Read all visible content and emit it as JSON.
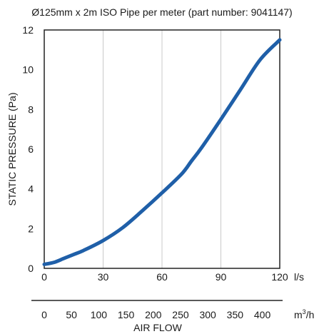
{
  "chart_data": {
    "type": "line",
    "title": "Ø125mm x 2m ISO Pipe per meter (part number: 9041147)",
    "ylabel": "STATIC PRESSURE (Pa)",
    "xlabel": "AIR FLOW",
    "x_unit_primary": "l/s",
    "x_unit_secondary_base": "m",
    "x_unit_secondary_sup": "3",
    "x_unit_secondary_tail": "/h",
    "xlim": [
      0,
      120
    ],
    "ylim": [
      0,
      12
    ],
    "x_ticks": [
      0,
      30,
      60,
      90,
      120
    ],
    "y_ticks": [
      0,
      2,
      4,
      6,
      8,
      10,
      12
    ],
    "secondary_ticks": [
      0,
      50,
      100,
      150,
      200,
      250,
      300,
      350,
      400
    ],
    "grid": true,
    "series": [
      {
        "color": "#1f5fa8",
        "x": [
          0,
          5,
          10,
          15,
          20,
          30,
          40,
          50,
          60,
          70,
          75,
          80,
          90,
          100,
          110,
          120
        ],
        "y": [
          0.2,
          0.3,
          0.5,
          0.7,
          0.9,
          1.4,
          2.05,
          2.9,
          3.8,
          4.75,
          5.4,
          6.05,
          7.5,
          9.0,
          10.5,
          11.5
        ]
      }
    ]
  }
}
